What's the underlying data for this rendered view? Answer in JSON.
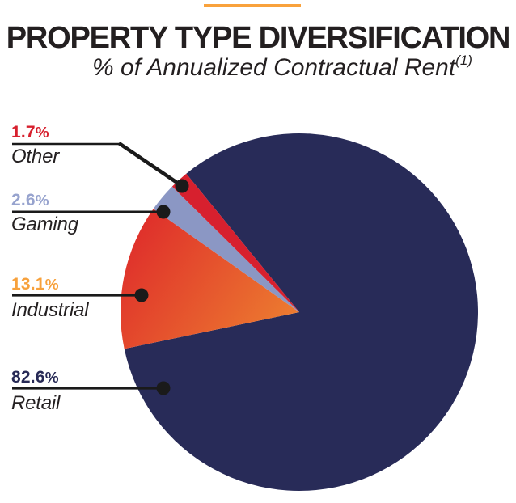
{
  "header": {
    "title": "PROPERTY TYPE DIVERSIFICATION",
    "subtitle": "% of Annualized Contractual Rent",
    "superscript": "(1)",
    "accent_color": "#F9A23C",
    "title_color": "#231F20"
  },
  "chart_data": {
    "type": "pie",
    "title": "PROPERTY TYPE DIVERSIFICATION",
    "subtitle": "% of Annualized Contractual Rent(1)",
    "unit": "% of annualized contractual rent",
    "legend_position": "left",
    "start_angle_deg": -39.2,
    "slices": [
      {
        "label": "Retail",
        "value": 82.6,
        "display": "82.6%",
        "color": "#282B58",
        "label_color": "#272A56"
      },
      {
        "label": "Industrial",
        "value": 13.1,
        "display": "13.1%",
        "color": "#E8602E",
        "gradient": [
          "#DF2F2B",
          "#ED8030"
        ],
        "label_color": "#F7A13C"
      },
      {
        "label": "Gaming",
        "value": 2.6,
        "display": "2.6%",
        "color": "#8B97C4",
        "label_color": "#97A3CE"
      },
      {
        "label": "Other",
        "value": 1.7,
        "display": "1.7%",
        "color": "#D7202E",
        "label_color": "#D7202E"
      }
    ],
    "callout_order": [
      "Other",
      "Gaming",
      "Industrial",
      "Retail"
    ],
    "category_name_color": "#231F20",
    "leader_line_color": "#1A1A1A"
  }
}
